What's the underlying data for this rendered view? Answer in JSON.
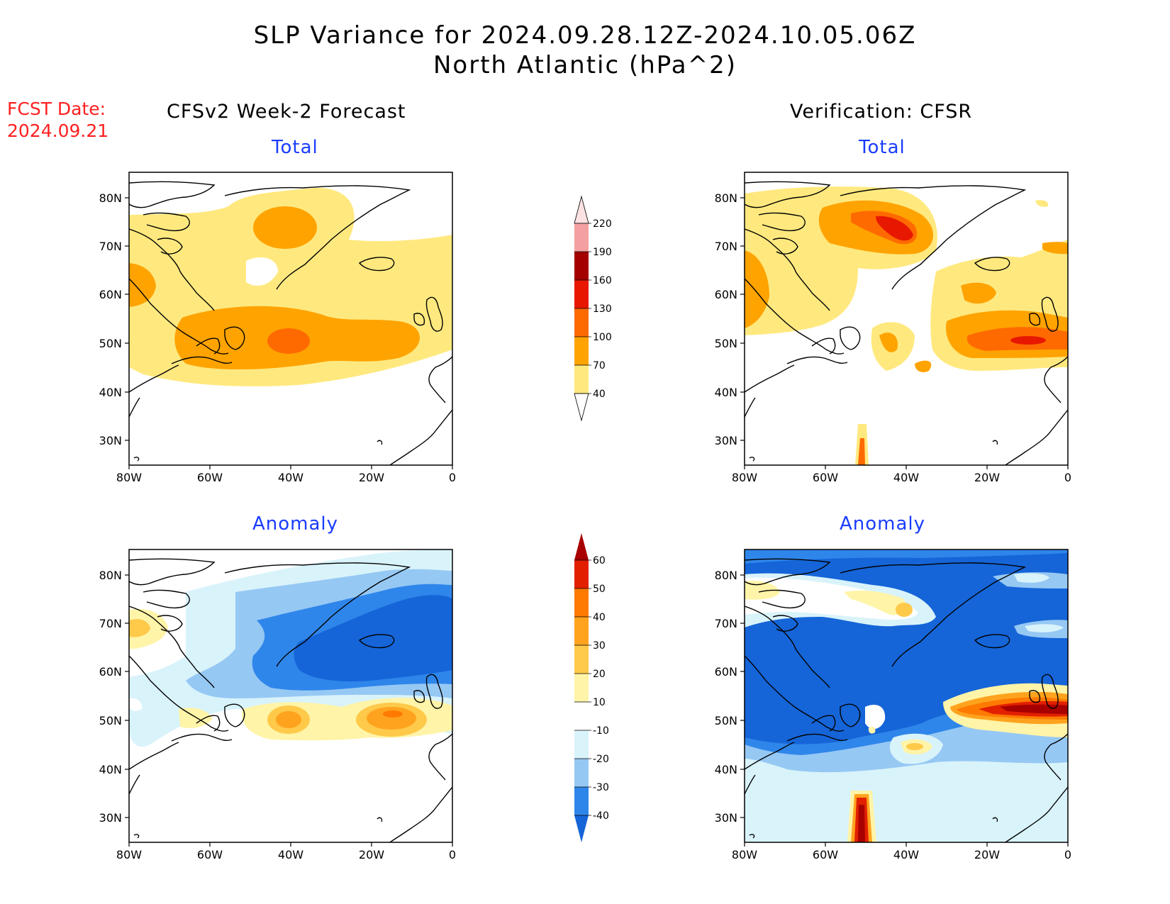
{
  "title": {
    "line1": "SLP Variance for 2024.09.28.12Z-2024.10.05.06Z",
    "line2": "North Atlantic (hPa^2)"
  },
  "fcst_date": {
    "label": "FCST Date:",
    "value": "2024.09.21"
  },
  "columns": {
    "forecast": "CFSv2 Week-2 Forecast",
    "verification": "Verification: CFSR"
  },
  "panels": {
    "forecast_total": "Total",
    "verification_total": "Total",
    "forecast_anomaly": "Anomaly",
    "verification_anomaly": "Anomaly"
  },
  "axes": {
    "lat_labels": [
      "80N",
      "70N",
      "60N",
      "50N",
      "40N",
      "30N"
    ],
    "lon_labels": [
      "80W",
      "60W",
      "40W",
      "20W",
      "0"
    ]
  },
  "colorbars": {
    "total": {
      "levels": [
        "40",
        "70",
        "100",
        "130",
        "160",
        "190",
        "220"
      ],
      "colors": [
        "#ffe97f",
        "#ffa300",
        "#ff6a00",
        "#e81800",
        "#a50000",
        "#f4a0a0",
        "#fde2e2"
      ]
    },
    "anomaly": {
      "levels": [
        "-40",
        "-30",
        "-20",
        "-10",
        "10",
        "20",
        "30",
        "40",
        "50",
        "60"
      ],
      "colors": [
        "#1565d8",
        "#2f86ea",
        "#96c8f4",
        "#d9f3fb",
        "#ffffff",
        "#fff4a8",
        "#ffc94a",
        "#ffa31e",
        "#ff7a00",
        "#e22000",
        "#a80000"
      ]
    }
  },
  "colors": {
    "fcst_red": "#ff2020",
    "subtitle_blue": "#1a3cff"
  }
}
